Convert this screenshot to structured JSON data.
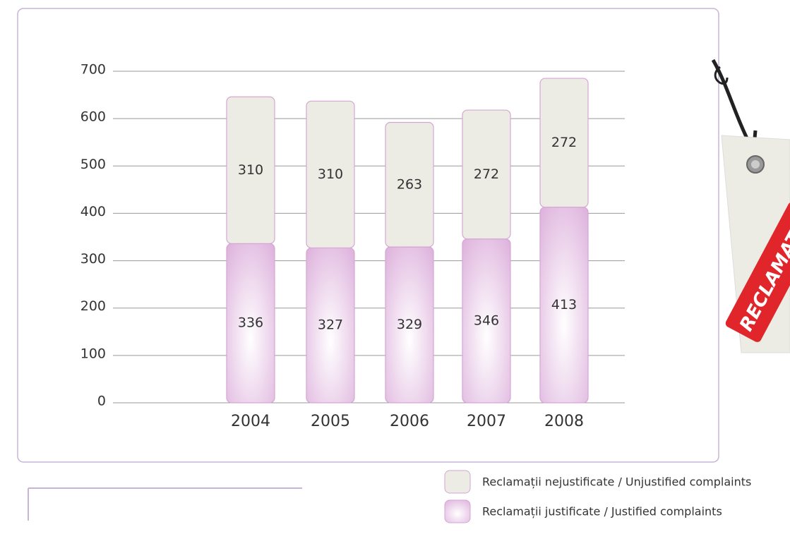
{
  "chart_data": {
    "type": "stacked_bar",
    "categories": [
      "2004",
      "2005",
      "2006",
      "2007",
      "2008"
    ],
    "series": [
      {
        "name": "Reclamații justificate / Justified complaints",
        "color": "#dcaedb",
        "values": [
          336,
          327,
          329,
          346,
          413
        ]
      },
      {
        "name": "Reclamații nejustificate / Unjustified complaints",
        "color": "#ecebe4",
        "values": [
          310,
          310,
          263,
          272,
          272
        ]
      }
    ],
    "ylim": [
      0,
      700
    ],
    "yticks": [
      0,
      100,
      200,
      300,
      400,
      500,
      600,
      700
    ],
    "grid": true
  },
  "decoration": {
    "tag_text": "RECLAMAȚII"
  }
}
